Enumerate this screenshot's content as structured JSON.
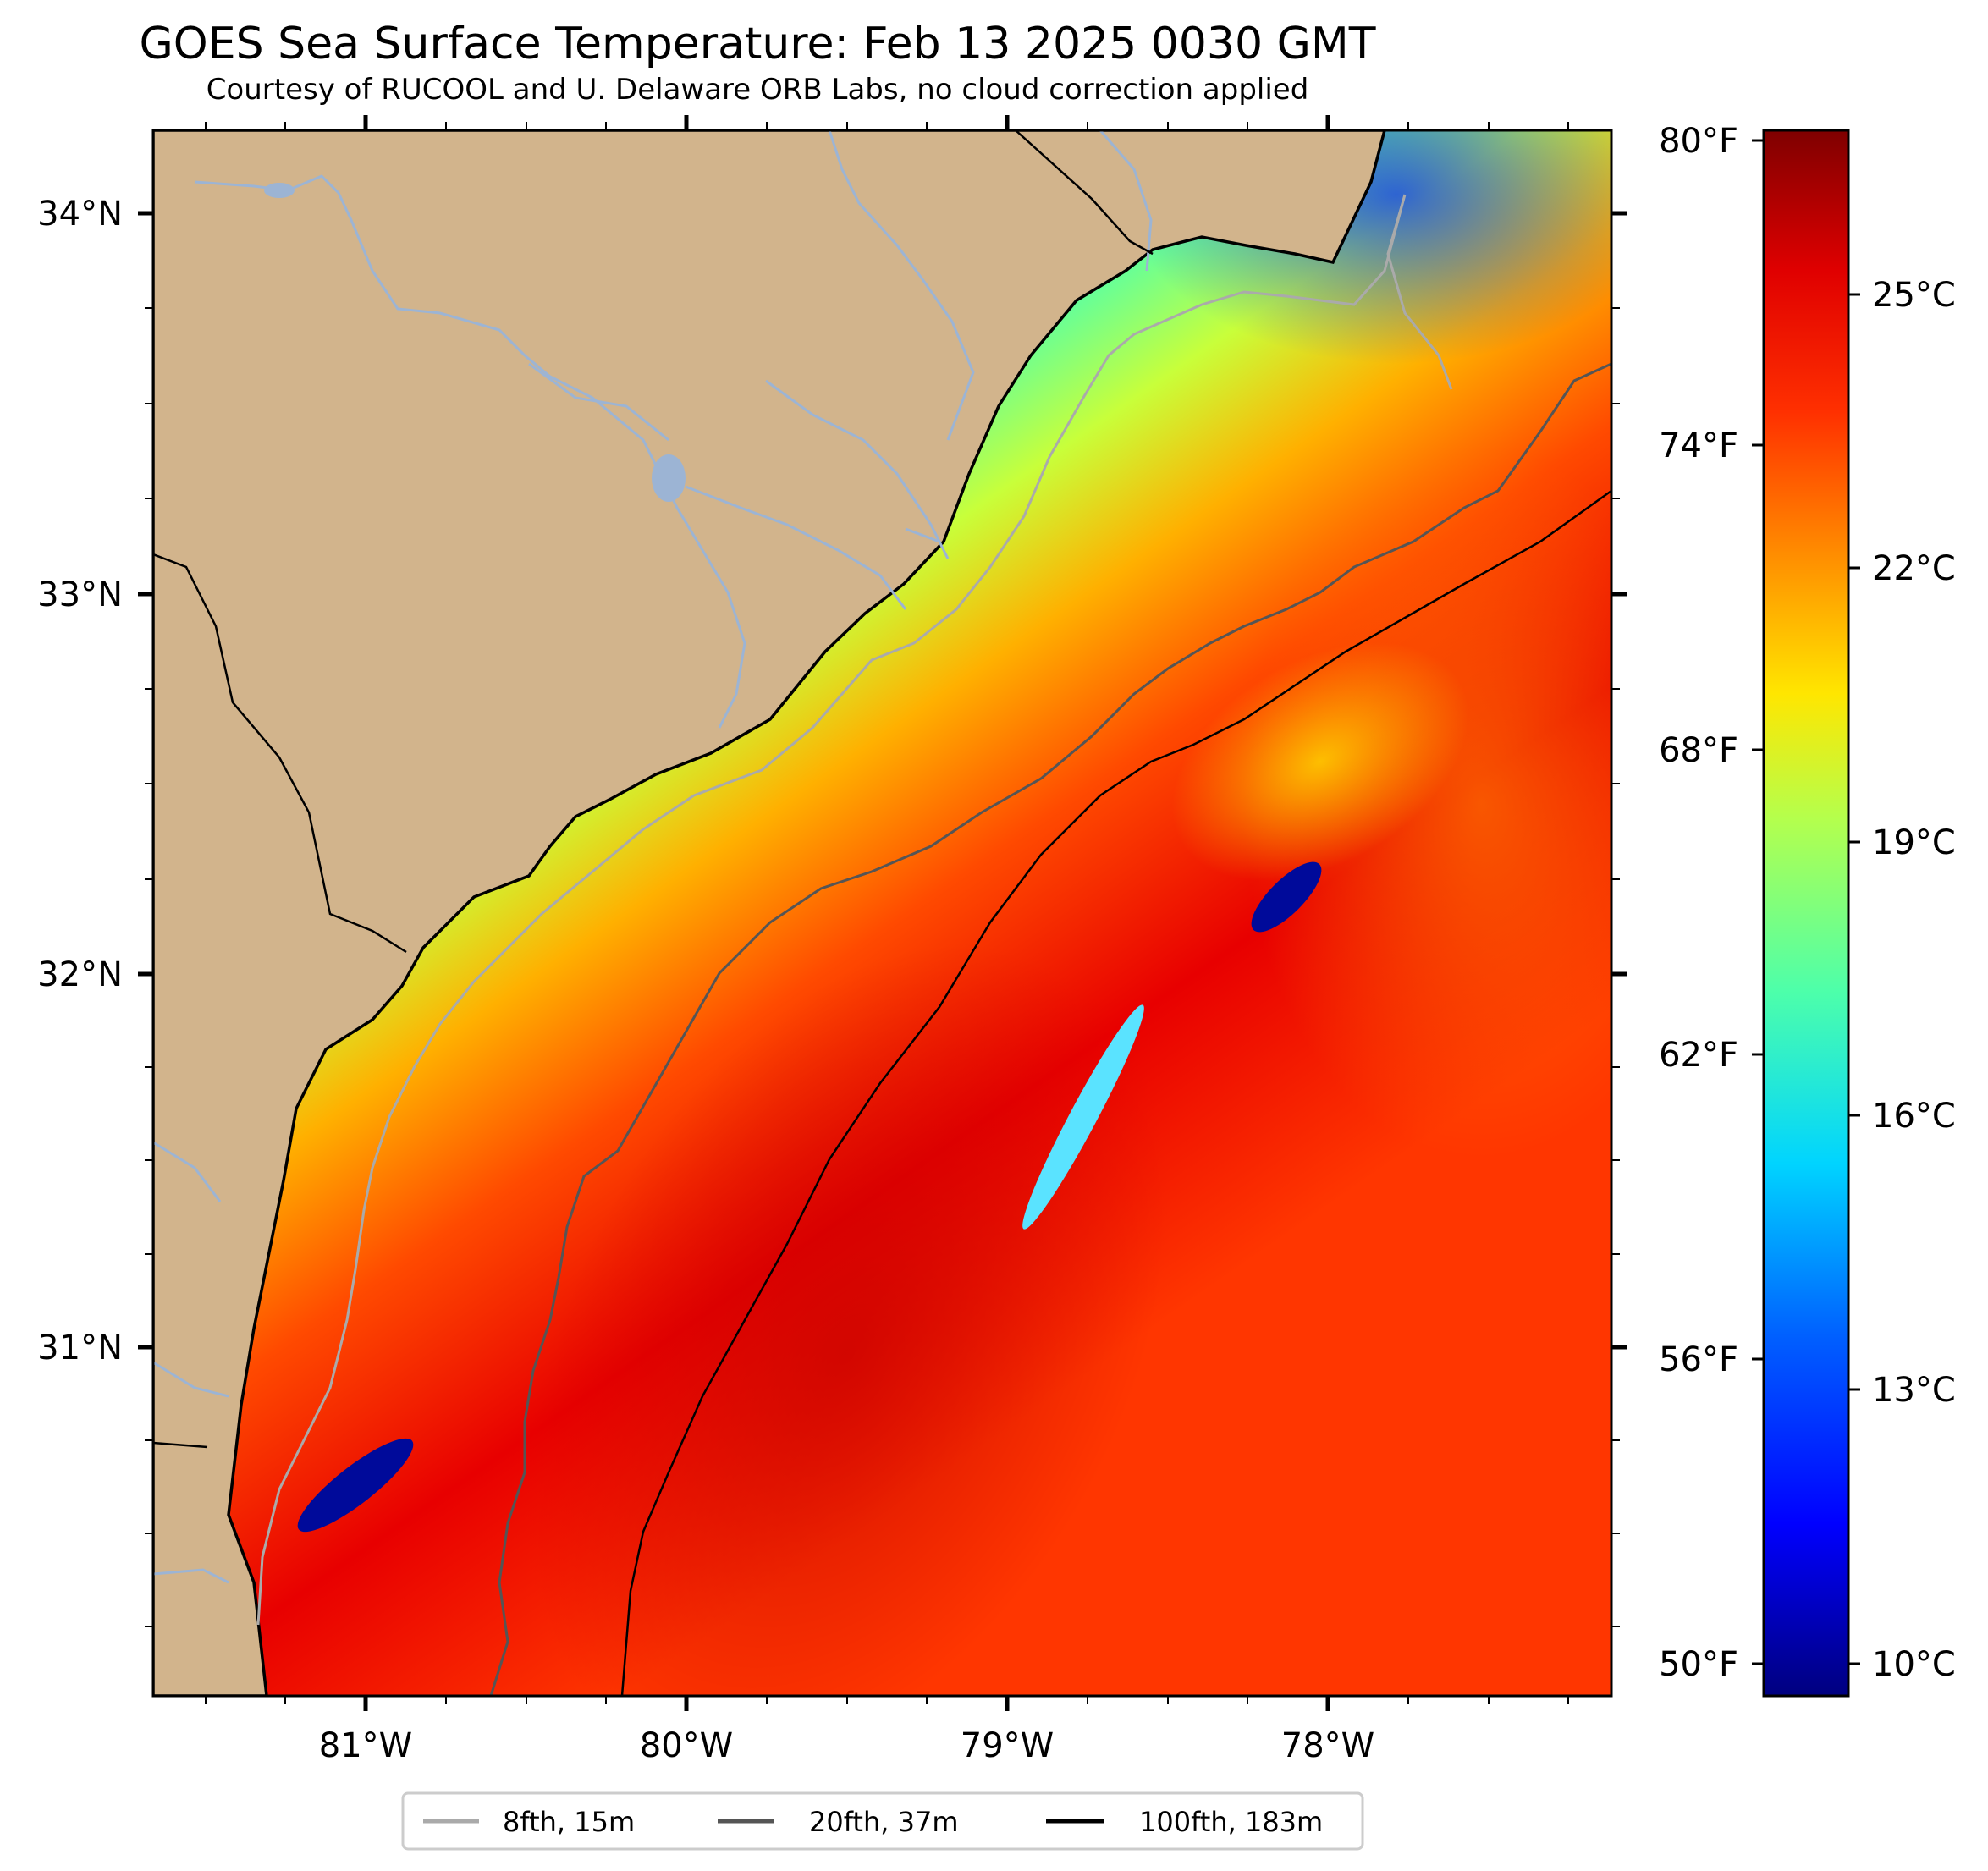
{
  "title": "GOES Sea Surface Temperature: Feb 13 2025 0030 GMT",
  "subtitle": "Courtesy of RUCOOL and U. Delaware ORB Labs, no cloud correction applied",
  "map": {
    "lat_range": [
      30.1,
      34.2
    ],
    "lon_range": [
      -81.65,
      -77.1
    ],
    "lat_labels": [
      "34°N",
      "33°N",
      "32°N",
      "31°N"
    ],
    "lon_labels": [
      "81°W",
      "80°W",
      "79°W",
      "78°W"
    ],
    "colors": {
      "land": "#d2b48c",
      "river": "#9cb4d4",
      "coast": "#000000"
    }
  },
  "colorbar": {
    "colormap": "jet",
    "range_c": [
      9.5,
      26.8
    ],
    "fahrenheit_labels": [
      "80°F",
      "74°F",
      "68°F",
      "62°F",
      "56°F",
      "50°F"
    ],
    "celsius_labels": [
      "25°C",
      "22°C",
      "19°C",
      "16°C",
      "13°C",
      "10°C"
    ]
  },
  "legend": {
    "items": [
      {
        "label": "8fth, 15m",
        "color": "#aaaaaa"
      },
      {
        "label": "20fth, 37m",
        "color": "#555555"
      },
      {
        "label": "100fth, 183m",
        "color": "#000000"
      }
    ]
  }
}
